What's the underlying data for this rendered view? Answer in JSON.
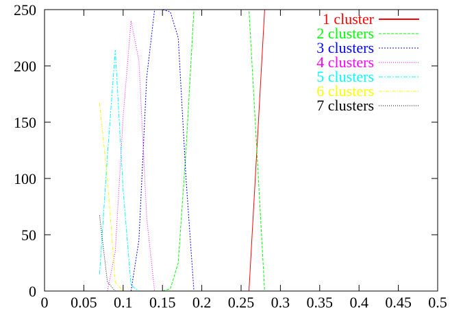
{
  "chart_data": {
    "type": "line",
    "title": "",
    "xlabel": "",
    "ylabel": "",
    "xlim": [
      0,
      0.5
    ],
    "ylim": [
      0,
      250
    ],
    "grid": false,
    "legend_position": "top-right",
    "x_ticks": [
      0,
      0.05,
      0.1,
      0.15,
      0.2,
      0.25,
      0.3,
      0.35,
      0.4,
      0.45,
      0.5
    ],
    "x_tick_labels": [
      "0",
      "0.05",
      "0.1",
      "0.15",
      "0.2",
      "0.25",
      "0.3",
      "0.35",
      "0.4",
      "0.45",
      "0.5"
    ],
    "y_ticks": [
      0,
      50,
      100,
      150,
      200,
      250
    ],
    "y_tick_labels": [
      "0",
      "50",
      "100",
      "150",
      "200",
      "250"
    ],
    "series": [
      {
        "name": "1 cluster",
        "color": "#ff0000",
        "dash": "",
        "points": [
          [
            0.18,
            0
          ],
          [
            0.26,
            0
          ],
          [
            0.27,
            125
          ],
          [
            0.28,
            250
          ],
          [
            0.5,
            250
          ]
        ]
      },
      {
        "name": "2 clusters",
        "color": "#00ff00",
        "dash": "4,2",
        "points": [
          [
            0.15,
            0
          ],
          [
            0.16,
            2
          ],
          [
            0.17,
            25
          ],
          [
            0.18,
            125
          ],
          [
            0.19,
            250
          ],
          [
            0.26,
            250
          ],
          [
            0.27,
            125
          ],
          [
            0.28,
            0
          ]
        ]
      },
      {
        "name": "3 clusters",
        "color": "#0000ff",
        "dash": "2,2",
        "points": [
          [
            0.11,
            0
          ],
          [
            0.12,
            45
          ],
          [
            0.13,
            190
          ],
          [
            0.14,
            250
          ],
          [
            0.15,
            250
          ],
          [
            0.16,
            248
          ],
          [
            0.17,
            225
          ],
          [
            0.18,
            100
          ],
          [
            0.19,
            0
          ]
        ]
      },
      {
        "name": "4 clusters",
        "color": "#ff00ff",
        "dash": "1,2",
        "points": [
          [
            0.08,
            0
          ],
          [
            0.09,
            35
          ],
          [
            0.1,
            155
          ],
          [
            0.11,
            240
          ],
          [
            0.12,
            205
          ],
          [
            0.13,
            65
          ],
          [
            0.14,
            0
          ]
        ]
      },
      {
        "name": "5 clusters",
        "color": "#00ffff",
        "dash": "6,2,2,2",
        "points": [
          [
            0.07,
            15
          ],
          [
            0.08,
            120
          ],
          [
            0.09,
            214
          ],
          [
            0.1,
            90
          ],
          [
            0.11,
            5
          ],
          [
            0.12,
            0
          ]
        ]
      },
      {
        "name": "6 clusters",
        "color": "#ffff00",
        "dash": "5,2,1,2",
        "points": [
          [
            0.07,
            167
          ],
          [
            0.08,
            100
          ],
          [
            0.09,
            8
          ],
          [
            0.1,
            0
          ]
        ]
      },
      {
        "name": "7 clusters",
        "color": "#000000",
        "dash": "1,2",
        "points": [
          [
            0.07,
            67
          ],
          [
            0.08,
            8
          ],
          [
            0.09,
            0
          ]
        ]
      }
    ]
  }
}
